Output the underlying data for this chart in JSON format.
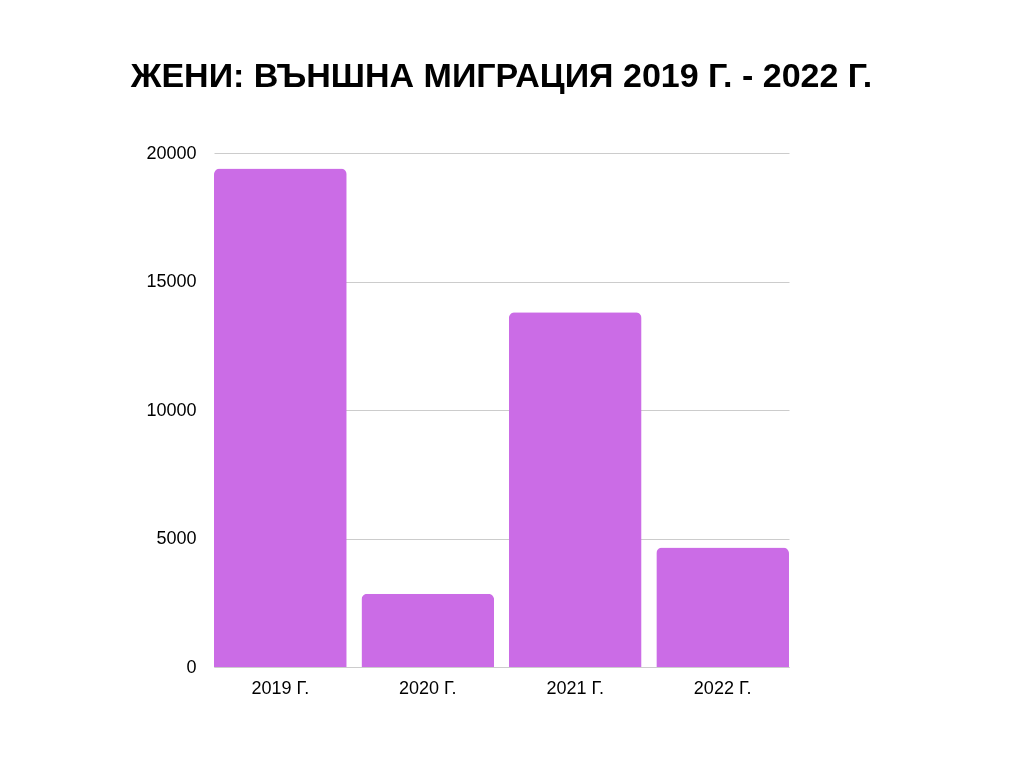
{
  "chart_data": {
    "type": "bar",
    "title": "ЖЕНИ: ВЪНШНА МИГРАЦИЯ 2019 Г. - 2022 Г.",
    "categories": [
      "2019 Г.",
      "2020 Г.",
      "2021 Г.",
      "2022 Г."
    ],
    "values": [
      19400,
      2850,
      13800,
      4650
    ],
    "color": "#cb6ce6",
    "ylim": [
      0,
      20000
    ],
    "yticks": [
      0,
      5000,
      10000,
      15000,
      20000
    ],
    "grid": "y"
  }
}
